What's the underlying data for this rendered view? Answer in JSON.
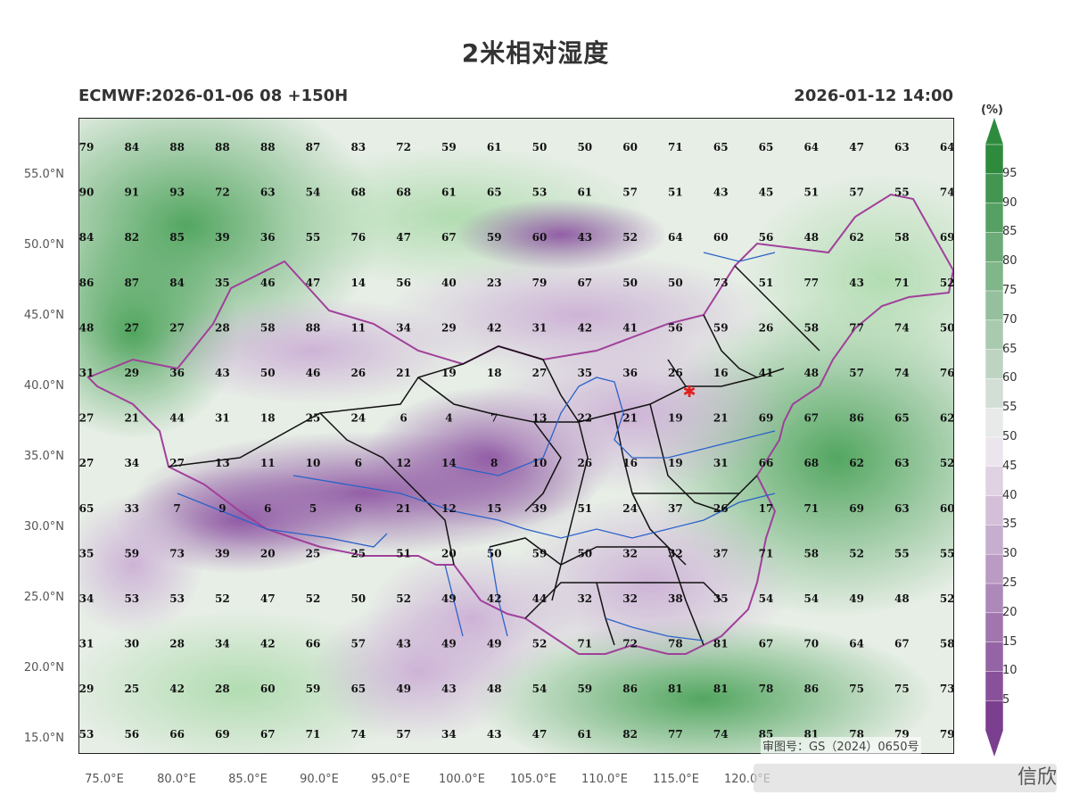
{
  "title": "2米相对湿度",
  "subtitle_left": "ECMWF:2026-01-06 08 +150H",
  "subtitle_right": "2026-01-12 14:00",
  "watermark": "审图号：GS（2024）0650号",
  "corner_watermark": "信欣",
  "colors": {
    "dry": "#7b3f8f",
    "mid": "#f2eef2",
    "wet": "#2e8b3e",
    "province_border": "#111111",
    "national_border": "#a0409a",
    "river": "#2a62c9",
    "capital_marker": "#e02020"
  },
  "capital_marker_icon": "star-icon",
  "axes": {
    "lat_labels": [
      "55.0°N",
      "50.0°N",
      "45.0°N",
      "40.0°N",
      "35.0°N",
      "30.0°N",
      "25.0°N",
      "20.0°N",
      "15.0°N"
    ],
    "lon_labels": [
      "75.0°E",
      "80.0°E",
      "85.0°E",
      "90.0°E",
      "95.0°E",
      "100.0°E",
      "105.0°E",
      "110.0°E",
      "115.0°E",
      "120.0°E"
    ]
  },
  "colorbar": {
    "unit": "(%)",
    "levels": [
      95,
      90,
      85,
      80,
      75,
      70,
      65,
      60,
      55,
      50,
      45,
      40,
      35,
      30,
      25,
      20,
      15,
      10,
      5
    ]
  },
  "station_grid": [
    [
      "79",
      "84",
      "88",
      "88",
      "88",
      "87",
      "83",
      "72",
      "59",
      "61",
      "50",
      "50",
      "60",
      "71",
      "65",
      "65",
      "64",
      "47",
      "63",
      "64"
    ],
    [
      "90",
      "91",
      "93",
      "72",
      "63",
      "54",
      "68",
      "68",
      "61",
      "65",
      "53",
      "61",
      "57",
      "51",
      "43",
      "45",
      "51",
      "57",
      "55",
      "74"
    ],
    [
      "84",
      "82",
      "85",
      "39",
      "36",
      "55",
      "76",
      "47",
      "67",
      "59",
      "60",
      "43",
      "52",
      "64",
      "60",
      "56",
      "48",
      "62",
      "58",
      "69"
    ],
    [
      "86",
      "87",
      "84",
      "35",
      "46",
      "47",
      "14",
      "56",
      "40",
      "23",
      "79",
      "67",
      "50",
      "50",
      "73",
      "51",
      "77",
      "43",
      "71",
      "52"
    ],
    [
      "48",
      "27",
      "27",
      "28",
      "58",
      "88",
      "11",
      "34",
      "29",
      "42",
      "31",
      "42",
      "41",
      "56",
      "59",
      "26",
      "58",
      "77",
      "74",
      "50"
    ],
    [
      "31",
      "29",
      "36",
      "43",
      "50",
      "46",
      "26",
      "21",
      "19",
      "18",
      "27",
      "35",
      "36",
      "26",
      "16",
      "41",
      "48",
      "57",
      "74",
      "76"
    ],
    [
      "27",
      "21",
      "44",
      "31",
      "18",
      "25",
      "24",
      "6",
      "4",
      "7",
      "13",
      "22",
      "21",
      "19",
      "21",
      "69",
      "67",
      "86",
      "65",
      "62"
    ],
    [
      "27",
      "34",
      "27",
      "13",
      "11",
      "10",
      "6",
      "12",
      "14",
      "8",
      "10",
      "26",
      "16",
      "19",
      "31",
      "66",
      "68",
      "62",
      "63",
      "52"
    ],
    [
      "65",
      "33",
      "7",
      "9",
      "6",
      "5",
      "6",
      "21",
      "12",
      "15",
      "39",
      "51",
      "24",
      "37",
      "26",
      "17",
      "71",
      "69",
      "63",
      "60"
    ],
    [
      "35",
      "59",
      "73",
      "39",
      "20",
      "25",
      "25",
      "51",
      "20",
      "50",
      "59",
      "50",
      "32",
      "32",
      "37",
      "71",
      "58",
      "52",
      "55",
      "55"
    ],
    [
      "34",
      "53",
      "53",
      "52",
      "47",
      "52",
      "50",
      "52",
      "49",
      "42",
      "44",
      "32",
      "32",
      "38",
      "35",
      "54",
      "54",
      "49",
      "48",
      "52"
    ],
    [
      "31",
      "30",
      "28",
      "34",
      "42",
      "66",
      "57",
      "43",
      "49",
      "49",
      "52",
      "71",
      "72",
      "78",
      "81",
      "67",
      "70",
      "64",
      "67",
      "58"
    ],
    [
      "29",
      "25",
      "42",
      "28",
      "60",
      "59",
      "65",
      "49",
      "43",
      "48",
      "54",
      "59",
      "86",
      "81",
      "81",
      "78",
      "86",
      "75",
      "75",
      "73"
    ],
    [
      "53",
      "56",
      "66",
      "69",
      "67",
      "71",
      "74",
      "57",
      "34",
      "43",
      "47",
      "61",
      "82",
      "77",
      "74",
      "85",
      "81",
      "78",
      "79",
      "79"
    ]
  ]
}
